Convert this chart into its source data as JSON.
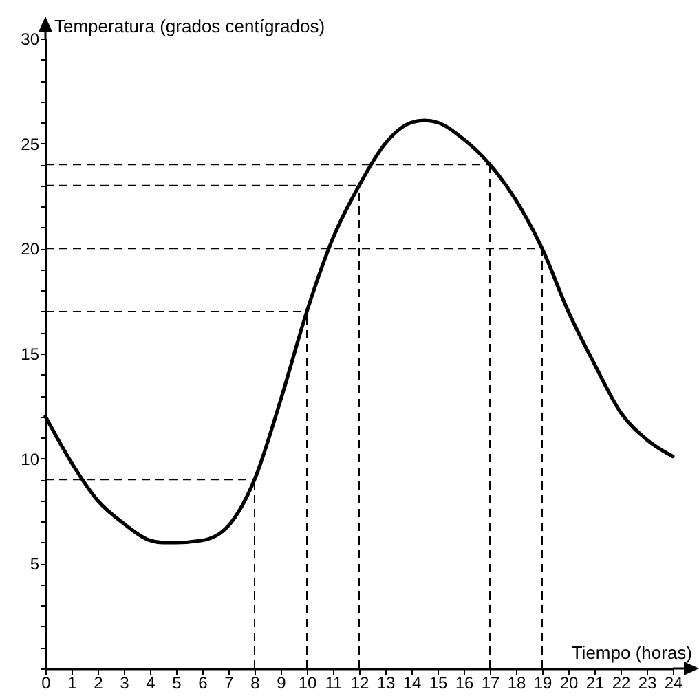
{
  "chart_data": {
    "type": "line",
    "xlabel": "Tiempo (horas)",
    "ylabel": "Temperatura (grados centígrados)",
    "x": [
      0,
      1,
      2,
      3,
      4,
      4.5,
      5,
      6,
      7,
      8,
      9,
      10,
      11,
      12,
      13,
      14,
      14.5,
      15,
      16,
      17,
      18,
      19,
      20,
      21,
      22,
      23,
      24
    ],
    "series": [
      {
        "color": "#000000",
        "values": [
          12,
          9.8,
          8,
          6.9,
          6.1,
          6,
          6,
          6.1,
          6.8,
          9,
          12.8,
          17,
          20.5,
          23,
          25,
          26,
          26.1,
          26,
          25.2,
          24,
          22.3,
          20,
          17,
          14.5,
          12.2,
          10.9,
          10.1
        ]
      }
    ],
    "xlim": [
      0,
      24
    ],
    "ylim": [
      0,
      30
    ],
    "xticks": [
      0,
      1,
      2,
      3,
      4,
      5,
      6,
      7,
      8,
      9,
      10,
      11,
      12,
      13,
      14,
      15,
      16,
      17,
      18,
      19,
      20,
      21,
      22,
      23,
      24
    ],
    "yticks": [
      {
        "value": 0,
        "label": null
      },
      {
        "value": 1,
        "label": null
      },
      {
        "value": 2,
        "label": null
      },
      {
        "value": 3,
        "label": null
      },
      {
        "value": 4,
        "label": null
      },
      5,
      {
        "value": 6,
        "label": null
      },
      {
        "value": 7,
        "label": null
      },
      {
        "value": 8,
        "label": null
      },
      {
        "value": 9,
        "label": null
      },
      10,
      {
        "value": 11,
        "label": null
      },
      {
        "value": 12,
        "label": null
      },
      {
        "value": 13,
        "label": null
      },
      {
        "value": 14,
        "label": null
      },
      15,
      {
        "value": 16,
        "label": null
      },
      {
        "value": 17,
        "label": null
      },
      {
        "value": 18,
        "label": null
      },
      {
        "value": 19,
        "label": null
      },
      20,
      {
        "value": 21,
        "label": null
      },
      {
        "value": 22,
        "label": null
      },
      {
        "value": 23,
        "label": null
      },
      {
        "value": 24,
        "label": null
      },
      25,
      {
        "value": 26,
        "label": null
      },
      {
        "value": 27,
        "label": null
      },
      {
        "value": 28,
        "label": null
      },
      {
        "value": 29,
        "label": null
      },
      30
    ],
    "ref_lines": [
      {
        "axis": "x",
        "value": 8,
        "line_style": "dashed"
      },
      {
        "axis": "x",
        "value": 10,
        "line_style": "dashed"
      },
      {
        "axis": "x",
        "value": 12,
        "line_style": "dashed"
      },
      {
        "axis": "x",
        "value": 17,
        "line_style": "dashed"
      },
      {
        "axis": "x",
        "value": 19,
        "line_style": "dashed"
      },
      {
        "axis": "y",
        "value": 9,
        "line_style": "dashed"
      },
      {
        "axis": "y",
        "value": 17,
        "line_style": "dashed"
      },
      {
        "axis": "y",
        "value": 20,
        "line_style": "dashed"
      },
      {
        "axis": "y",
        "value": 23,
        "line_style": "dashed"
      },
      {
        "axis": "y",
        "value": 24,
        "line_style": "dashed"
      }
    ]
  }
}
